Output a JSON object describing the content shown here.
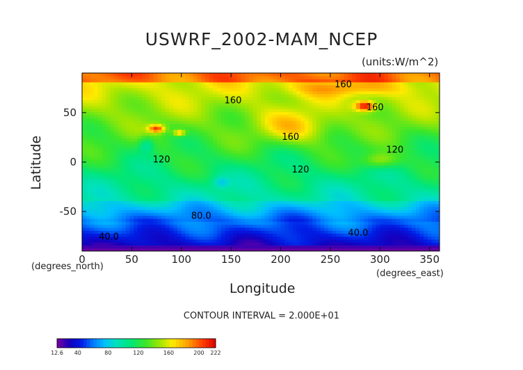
{
  "title": "USWRF_2002-MAM_NCEP",
  "units": "(units:W/m^2)",
  "contour_interval": "CONTOUR INTERVAL = 2.000E+01",
  "chart_data": {
    "type": "heatmap",
    "title": "USWRF_2002-MAM_NCEP",
    "xlabel": "Longitude",
    "ylabel": "Latitude",
    "x_unit": "(degrees_east)",
    "y_unit": "(degrees_north)",
    "xlim": [
      0,
      360
    ],
    "ylim": [
      -90,
      90
    ],
    "x_ticks": [
      0,
      50,
      100,
      150,
      200,
      250,
      300,
      350
    ],
    "y_ticks": [
      -50,
      0,
      50
    ],
    "contour_labels": [
      {
        "text": "160",
        "lon": 263,
        "lat": 78
      },
      {
        "text": "160",
        "lon": 152,
        "lat": 62
      },
      {
        "text": "160",
        "lon": 295,
        "lat": 55
      },
      {
        "text": "160",
        "lon": 210,
        "lat": 25
      },
      {
        "text": "120",
        "lon": 80,
        "lat": 2
      },
      {
        "text": "120",
        "lon": 220,
        "lat": -8
      },
      {
        "text": "120",
        "lon": 315,
        "lat": 12
      },
      {
        "text": "80.0",
        "lon": 120,
        "lat": -55
      },
      {
        "text": "40.0",
        "lon": 27,
        "lat": -76
      },
      {
        "text": "40.0",
        "lon": 278,
        "lat": -72
      }
    ],
    "colorbar": {
      "min": 12.6,
      "max": 222,
      "tick_labels": [
        "12.6",
        "40",
        "80",
        "120",
        "160",
        "200",
        "222"
      ],
      "tick_values": [
        12.6,
        40,
        80,
        120,
        160,
        200,
        222
      ]
    }
  }
}
